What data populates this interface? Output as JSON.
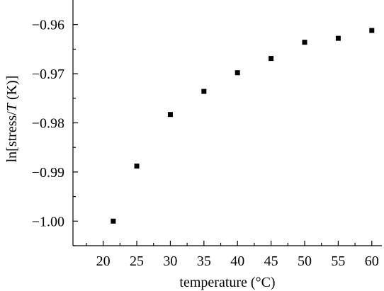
{
  "chart_data": {
    "type": "scatter",
    "xlabel": "temperature (°C)",
    "ylabel": {
      "prefix": "ln[stress/",
      "italic": "T",
      "suffix": " (K)]"
    },
    "xlim": [
      15.5,
      61.5
    ],
    "ylim": [
      -1.005,
      -0.955
    ],
    "x_ticks": [
      20,
      25,
      30,
      35,
      40,
      45,
      50,
      55,
      60
    ],
    "x_tick_labels": [
      "20",
      "25",
      "30",
      "35",
      "40",
      "45",
      "50",
      "55",
      "60"
    ],
    "y_ticks": [
      -1.0,
      -0.99,
      -0.98,
      -0.97,
      -0.96
    ],
    "y_tick_labels": [
      "−1.00",
      "−0.99",
      "−0.98",
      "−0.97",
      "−0.96"
    ],
    "grid": false,
    "marker_color": "#000000",
    "series": [
      {
        "x": [
          21.5,
          25,
          30,
          35,
          40,
          45,
          50,
          55,
          60
        ],
        "y": [
          -1.0,
          -0.9888,
          -0.9783,
          -0.9736,
          -0.9698,
          -0.9669,
          -0.9636,
          -0.9628,
          -0.9612
        ]
      }
    ]
  }
}
